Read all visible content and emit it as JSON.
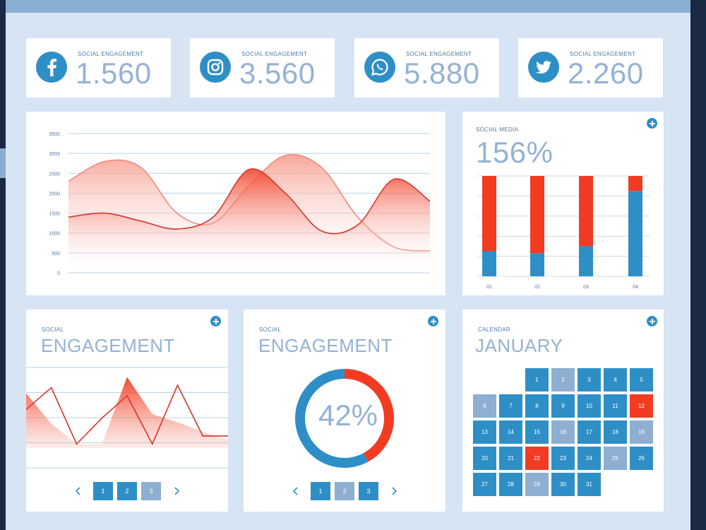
{
  "theme": {
    "blue": "#2e8fc6",
    "muted_blue": "#8eaed2",
    "red": "#f23b22",
    "background": "#d6e4f4"
  },
  "stats": [
    {
      "icon": "facebook-icon",
      "label": "SOCIAL ENGAGEMENT",
      "value": "1.560"
    },
    {
      "icon": "instagram-icon",
      "label": "SOCIAL ENGAGEMENT",
      "value": "3.560"
    },
    {
      "icon": "whatsapp-icon",
      "label": "SOCIAL ENGAGEMENT",
      "value": "5.880"
    },
    {
      "icon": "twitter-icon",
      "label": "SOCIAL ENGAGEMENT",
      "value": "2.260"
    }
  ],
  "area_chart": {
    "type": "area",
    "y_ticks": [
      "3500",
      "3000",
      "2500",
      "2000",
      "1500",
      "1000",
      "500",
      "0"
    ],
    "ylim": [
      0,
      3500
    ],
    "grid": true,
    "x": [
      0,
      1,
      2,
      3,
      4,
      5,
      6,
      7,
      8,
      9,
      10
    ],
    "series": [
      {
        "values": [
          2300,
          2800,
          2650,
          1500,
          1250,
          2200,
          2950,
          2650,
          1400,
          650,
          550
        ]
      },
      {
        "values": [
          1400,
          1500,
          1300,
          1100,
          1400,
          2600,
          2000,
          1050,
          1200,
          2350,
          1800
        ]
      }
    ]
  },
  "social_media": {
    "label": "SOCIAL MEDIA",
    "value": "156%",
    "chart_data": {
      "type": "bar",
      "stacked": true,
      "categories": [
        "01",
        "02",
        "03",
        "04"
      ],
      "ylim": [
        0,
        100
      ],
      "series": [
        {
          "color": "#2e8fc6",
          "values": [
            25,
            23,
            30,
            85
          ]
        },
        {
          "color": "#f23b22",
          "values": [
            75,
            77,
            70,
            15
          ]
        }
      ]
    }
  },
  "engagement_line": {
    "label": "SOCIAL",
    "title": "ENGAGEMENT",
    "chart_data": {
      "type": "line",
      "x": [
        0,
        1,
        2,
        3,
        4,
        5,
        6,
        7,
        8
      ],
      "ylim": [
        0,
        100
      ],
      "series": [
        {
          "style": "area",
          "values": [
            68,
            30,
            5,
            5,
            88,
            42,
            32,
            20,
            10
          ]
        },
        {
          "style": "line",
          "values": [
            48,
            75,
            5,
            37,
            65,
            5,
            78,
            15,
            15
          ]
        }
      ]
    },
    "pager": {
      "pages": [
        "1",
        "2",
        "3"
      ],
      "muted_index": 2
    }
  },
  "engagement_donut": {
    "label": "SOCIAL",
    "title": "ENGAGEMENT",
    "value": "42%",
    "chart_data": {
      "type": "pie",
      "values": [
        42,
        58
      ],
      "colors": [
        "#f23b22",
        "#2e8fc6"
      ]
    },
    "pager": {
      "pages": [
        "1",
        "2",
        "3"
      ],
      "muted_index": 1
    }
  },
  "calendar": {
    "label": "CALENDAR",
    "month": "JANUARY",
    "start_column": 2,
    "days": [
      "1",
      "2",
      "3",
      "4",
      "5",
      "6",
      "7",
      "8",
      "9",
      "10",
      "11",
      "12",
      "13",
      "14",
      "15",
      "16",
      "17",
      "18",
      "19",
      "20",
      "21",
      "22",
      "23",
      "24",
      "25",
      "26",
      "27",
      "28",
      "29",
      "30",
      "31"
    ],
    "muted_days": [
      "2",
      "6",
      "16",
      "19",
      "25",
      "29"
    ],
    "highlighted_days": [
      "12",
      "22"
    ]
  }
}
